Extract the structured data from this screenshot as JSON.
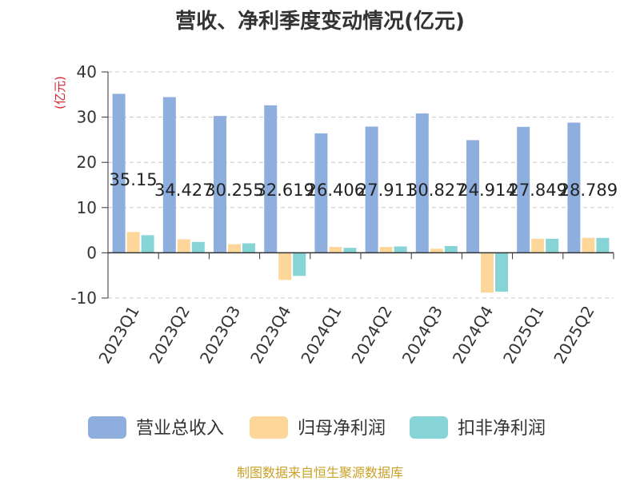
{
  "chart_data": {
    "type": "bar",
    "title": "营收、净利季度变动情况(亿元)",
    "ylabel": "(亿元)",
    "ylim": [
      -10,
      40
    ],
    "yticks": [
      -10,
      0,
      10,
      20,
      30,
      40
    ],
    "categories": [
      "2023Q1",
      "2023Q2",
      "2023Q3",
      "2023Q4",
      "2024Q1",
      "2024Q2",
      "2024Q3",
      "2024Q4",
      "2025Q1",
      "2025Q2"
    ],
    "series": [
      {
        "name": "营业总收入",
        "color": "#8eaedd",
        "values": [
          35.15,
          34.427,
          30.255,
          32.619,
          26.406,
          27.911,
          30.827,
          24.914,
          27.849,
          28.789
        ]
      },
      {
        "name": "归母净利润",
        "color": "#fcd799",
        "values": [
          4.6,
          3.0,
          1.9,
          -6.0,
          1.3,
          1.3,
          0.9,
          -8.8,
          3.1,
          3.3
        ]
      },
      {
        "name": "扣非净利润",
        "color": "#86d4d6",
        "values": [
          3.9,
          2.4,
          2.1,
          -5.1,
          1.1,
          1.4,
          1.5,
          -8.6,
          3.1,
          3.3
        ]
      }
    ],
    "data_labels": [
      "35.15",
      "34.427",
      "30.255",
      "32.619",
      "26.406",
      "27.911",
      "30.827",
      "24.914",
      "27.849",
      "28.789"
    ],
    "grid": true,
    "legend": "bottom"
  },
  "source": "制图数据来自恒生聚源数据库"
}
